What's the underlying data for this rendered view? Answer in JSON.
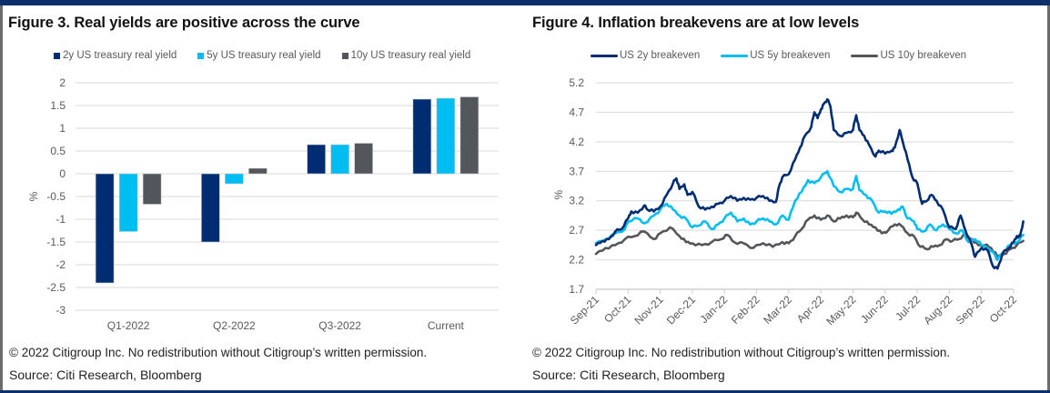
{
  "colors": {
    "frame": "#0b2f6b",
    "navy": "#002d72",
    "cyan": "#00bdf2",
    "gray": "#53565a",
    "grid": "#d9d9d9",
    "axis_text": "#595959"
  },
  "left": {
    "title": "Figure 3. Real yields are positive across the curve",
    "copyright": "© 2022 Citigroup Inc. No redistribution without Citigroup’s written permission.",
    "source": "Source: Citi Research, Bloomberg"
  },
  "right": {
    "title": "Figure 4. Inflation breakevens are at low levels",
    "copyright": "© 2022 Citigroup Inc. No redistribution without Citigroup’s written permission.",
    "source": "Source: Citi Research, Bloomberg"
  },
  "chart_data": [
    {
      "type": "bar",
      "title": "Figure 3. Real yields are positive across the curve",
      "xlabel": "",
      "ylabel": "%",
      "ylim": [
        -3,
        2
      ],
      "yticks": [
        "2",
        "1.5",
        "1",
        "0.5",
        "0",
        "-0.5",
        "-1",
        "-1.5",
        "-2",
        "-2.5",
        "-3"
      ],
      "ytick_values": [
        2,
        1.5,
        1,
        0.5,
        0,
        -0.5,
        -1,
        -1.5,
        -2,
        -2.5,
        -3
      ],
      "grid": true,
      "legend_position": "top",
      "categories": [
        "Q1-2022",
        "Q2-2022",
        "Q3-2022",
        "Current"
      ],
      "series": [
        {
          "name": "2y US treasury real yield",
          "color": "#002d72",
          "values": [
            -2.4,
            -1.5,
            0.64,
            1.64
          ]
        },
        {
          "name": "5y US treasury real yield",
          "color": "#00bdf2",
          "values": [
            -1.27,
            -0.22,
            0.64,
            1.66
          ]
        },
        {
          "name": "10y US treasury real yield",
          "color": "#53565a",
          "values": [
            -0.67,
            0.12,
            0.67,
            1.69
          ]
        }
      ]
    },
    {
      "type": "line",
      "title": "Figure 4. Inflation breakevens are at low levels",
      "xlabel": "",
      "ylabel": "%",
      "ylim": [
        1.7,
        5.2
      ],
      "yticks": [
        "5.2",
        "4.7",
        "4.2",
        "3.7",
        "3.2",
        "2.7",
        "2.2",
        "1.7"
      ],
      "ytick_values": [
        5.2,
        4.7,
        4.2,
        3.7,
        3.2,
        2.7,
        2.2,
        1.7
      ],
      "grid": true,
      "legend_position": "top",
      "xticks": [
        "Sep-21",
        "Oct-21",
        "Nov-21",
        "Dec-21",
        "Jan-22",
        "Feb-22",
        "Mar-22",
        "Apr-22",
        "May-22",
        "Jun-22",
        "Jul-22",
        "Aug-22",
        "Sep-22",
        "Oct-22"
      ],
      "x_units": "months since Sep-21",
      "series": [
        {
          "name": "US 2y breakeven",
          "color": "#002d72",
          "points": [
            [
              0,
              2.45
            ],
            [
              0.2,
              2.52
            ],
            [
              0.4,
              2.55
            ],
            [
              0.6,
              2.68
            ],
            [
              0.8,
              2.72
            ],
            [
              1.0,
              2.9
            ],
            [
              1.1,
              3.02
            ],
            [
              1.3,
              3.0
            ],
            [
              1.5,
              3.12
            ],
            [
              1.6,
              3.05
            ],
            [
              1.8,
              3.02
            ],
            [
              2.0,
              3.1
            ],
            [
              2.2,
              3.3
            ],
            [
              2.4,
              3.5
            ],
            [
              2.5,
              3.58
            ],
            [
              2.6,
              3.4
            ],
            [
              2.75,
              3.48
            ],
            [
              2.85,
              3.3
            ],
            [
              3.0,
              3.35
            ],
            [
              3.2,
              3.1
            ],
            [
              3.4,
              3.05
            ],
            [
              3.6,
              3.1
            ],
            [
              3.8,
              3.15
            ],
            [
              4.0,
              3.2
            ],
            [
              4.2,
              3.28
            ],
            [
              4.4,
              3.2
            ],
            [
              4.6,
              3.25
            ],
            [
              4.8,
              3.22
            ],
            [
              5.0,
              3.25
            ],
            [
              5.2,
              3.28
            ],
            [
              5.4,
              3.2
            ],
            [
              5.6,
              3.18
            ],
            [
              5.7,
              3.45
            ],
            [
              5.8,
              3.6
            ],
            [
              6.0,
              3.65
            ],
            [
              6.2,
              3.9
            ],
            [
              6.35,
              4.1
            ],
            [
              6.5,
              4.3
            ],
            [
              6.7,
              4.45
            ],
            [
              6.8,
              4.7
            ],
            [
              6.9,
              4.6
            ],
            [
              7.0,
              4.75
            ],
            [
              7.1,
              4.85
            ],
            [
              7.2,
              4.92
            ],
            [
              7.3,
              4.8
            ],
            [
              7.4,
              4.4
            ],
            [
              7.6,
              4.3
            ],
            [
              7.8,
              4.35
            ],
            [
              8.0,
              4.4
            ],
            [
              8.1,
              4.65
            ],
            [
              8.2,
              4.4
            ],
            [
              8.35,
              4.3
            ],
            [
              8.5,
              4.15
            ],
            [
              8.7,
              3.95
            ],
            [
              8.8,
              4.05
            ],
            [
              9.0,
              4.0
            ],
            [
              9.2,
              4.05
            ],
            [
              9.3,
              4.1
            ],
            [
              9.45,
              4.4
            ],
            [
              9.55,
              4.2
            ],
            [
              9.7,
              3.9
            ],
            [
              9.85,
              3.6
            ],
            [
              10.0,
              3.5
            ],
            [
              10.15,
              3.15
            ],
            [
              10.3,
              3.2
            ],
            [
              10.45,
              3.3
            ],
            [
              10.6,
              3.2
            ],
            [
              10.8,
              3.05
            ],
            [
              11.0,
              2.75
            ],
            [
              11.2,
              2.72
            ],
            [
              11.35,
              2.95
            ],
            [
              11.5,
              2.7
            ],
            [
              11.7,
              2.45
            ],
            [
              11.8,
              2.25
            ],
            [
              12.0,
              2.4
            ],
            [
              12.2,
              2.35
            ],
            [
              12.35,
              2.1
            ],
            [
              12.5,
              2.05
            ],
            [
              12.65,
              2.3
            ],
            [
              12.85,
              2.4
            ],
            [
              13.0,
              2.5
            ],
            [
              13.1,
              2.6
            ],
            [
              13.2,
              2.6
            ],
            [
              13.3,
              2.85
            ]
          ]
        },
        {
          "name": "US 5y breakeven",
          "color": "#00bdf2",
          "points": [
            [
              0,
              2.48
            ],
            [
              0.3,
              2.55
            ],
            [
              0.6,
              2.65
            ],
            [
              0.9,
              2.72
            ],
            [
              1.0,
              2.85
            ],
            [
              1.3,
              2.9
            ],
            [
              1.5,
              2.82
            ],
            [
              1.8,
              2.95
            ],
            [
              2.0,
              3.05
            ],
            [
              2.2,
              3.15
            ],
            [
              2.4,
              3.05
            ],
            [
              2.6,
              2.95
            ],
            [
              2.8,
              2.9
            ],
            [
              3.0,
              2.75
            ],
            [
              3.2,
              2.78
            ],
            [
              3.4,
              2.85
            ],
            [
              3.6,
              2.72
            ],
            [
              3.8,
              2.8
            ],
            [
              4.0,
              2.9
            ],
            [
              4.2,
              3.0
            ],
            [
              4.4,
              2.85
            ],
            [
              4.6,
              2.9
            ],
            [
              4.8,
              2.8
            ],
            [
              5.0,
              2.85
            ],
            [
              5.2,
              2.9
            ],
            [
              5.4,
              2.85
            ],
            [
              5.6,
              2.8
            ],
            [
              5.8,
              2.95
            ],
            [
              6.0,
              2.88
            ],
            [
              6.2,
              3.2
            ],
            [
              6.4,
              3.35
            ],
            [
              6.6,
              3.55
            ],
            [
              6.8,
              3.5
            ],
            [
              7.0,
              3.6
            ],
            [
              7.2,
              3.7
            ],
            [
              7.4,
              3.45
            ],
            [
              7.6,
              3.35
            ],
            [
              7.8,
              3.4
            ],
            [
              8.0,
              3.4
            ],
            [
              8.1,
              3.62
            ],
            [
              8.2,
              3.38
            ],
            [
              8.4,
              3.3
            ],
            [
              8.6,
              3.2
            ],
            [
              8.8,
              3.0
            ],
            [
              9.0,
              3.02
            ],
            [
              9.2,
              2.98
            ],
            [
              9.4,
              3.05
            ],
            [
              9.55,
              3.1
            ],
            [
              9.7,
              2.9
            ],
            [
              9.9,
              2.85
            ],
            [
              10.0,
              2.72
            ],
            [
              10.2,
              2.68
            ],
            [
              10.4,
              2.8
            ],
            [
              10.6,
              2.7
            ],
            [
              10.8,
              2.8
            ],
            [
              11.0,
              2.72
            ],
            [
              11.2,
              2.65
            ],
            [
              11.4,
              2.7
            ],
            [
              11.6,
              2.5
            ],
            [
              11.8,
              2.55
            ],
            [
              12.0,
              2.45
            ],
            [
              12.2,
              2.4
            ],
            [
              12.4,
              2.3
            ],
            [
              12.5,
              2.2
            ],
            [
              12.7,
              2.35
            ],
            [
              12.9,
              2.45
            ],
            [
              13.1,
              2.5
            ],
            [
              13.3,
              2.62
            ]
          ]
        },
        {
          "name": "US 10y breakeven",
          "color": "#53565a",
          "points": [
            [
              0,
              2.3
            ],
            [
              0.3,
              2.4
            ],
            [
              0.6,
              2.45
            ],
            [
              0.9,
              2.55
            ],
            [
              1.2,
              2.6
            ],
            [
              1.5,
              2.68
            ],
            [
              1.8,
              2.55
            ],
            [
              2.0,
              2.65
            ],
            [
              2.3,
              2.75
            ],
            [
              2.6,
              2.6
            ],
            [
              2.8,
              2.5
            ],
            [
              3.0,
              2.48
            ],
            [
              3.3,
              2.45
            ],
            [
              3.6,
              2.5
            ],
            [
              3.9,
              2.55
            ],
            [
              4.1,
              2.62
            ],
            [
              4.3,
              2.5
            ],
            [
              4.6,
              2.48
            ],
            [
              4.9,
              2.4
            ],
            [
              5.2,
              2.48
            ],
            [
              5.5,
              2.42
            ],
            [
              5.8,
              2.5
            ],
            [
              6.0,
              2.48
            ],
            [
              6.2,
              2.6
            ],
            [
              6.4,
              2.72
            ],
            [
              6.6,
              2.88
            ],
            [
              6.8,
              2.95
            ],
            [
              7.0,
              2.88
            ],
            [
              7.2,
              2.95
            ],
            [
              7.4,
              2.85
            ],
            [
              7.6,
              2.9
            ],
            [
              7.8,
              2.95
            ],
            [
              8.0,
              2.92
            ],
            [
              8.1,
              3.0
            ],
            [
              8.3,
              2.88
            ],
            [
              8.5,
              2.8
            ],
            [
              8.7,
              2.75
            ],
            [
              8.9,
              2.65
            ],
            [
              9.1,
              2.7
            ],
            [
              9.3,
              2.8
            ],
            [
              9.5,
              2.78
            ],
            [
              9.7,
              2.65
            ],
            [
              9.9,
              2.6
            ],
            [
              10.1,
              2.42
            ],
            [
              10.3,
              2.38
            ],
            [
              10.5,
              2.42
            ],
            [
              10.7,
              2.45
            ],
            [
              10.9,
              2.55
            ],
            [
              11.1,
              2.52
            ],
            [
              11.3,
              2.55
            ],
            [
              11.5,
              2.62
            ],
            [
              11.7,
              2.55
            ],
            [
              11.9,
              2.45
            ],
            [
              12.1,
              2.45
            ],
            [
              12.3,
              2.4
            ],
            [
              12.5,
              2.25
            ],
            [
              12.7,
              2.3
            ],
            [
              12.9,
              2.38
            ],
            [
              13.1,
              2.45
            ],
            [
              13.3,
              2.52
            ]
          ]
        }
      ]
    }
  ]
}
